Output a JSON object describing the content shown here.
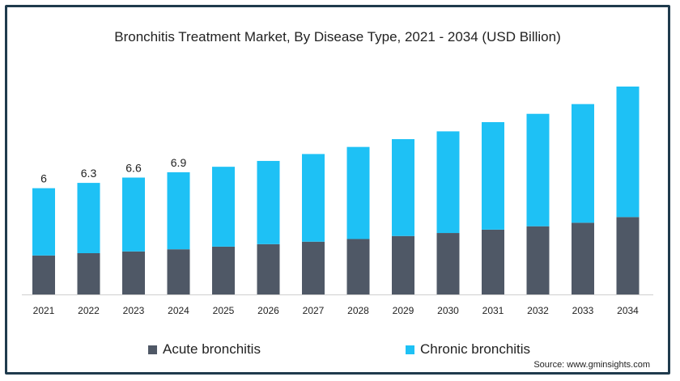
{
  "chart_data": {
    "type": "bar",
    "stacked": true,
    "title": "Bronchitis Treatment Market, By Disease Type, 2021 - 2034 (USD Billion)",
    "categories": [
      "2021",
      "2022",
      "2023",
      "2024",
      "2025",
      "2026",
      "2027",
      "2028",
      "2029",
      "2030",
      "2031",
      "2032",
      "2033",
      "2034"
    ],
    "series": [
      {
        "name": "Acute bronchitis",
        "color": "#4f5866",
        "values": [
          2.2,
          2.33,
          2.43,
          2.55,
          2.7,
          2.84,
          2.98,
          3.13,
          3.3,
          3.47,
          3.66,
          3.85,
          4.05,
          4.37
        ]
      },
      {
        "name": "Chronic bronchitis",
        "color": "#1ec1f5",
        "values": [
          3.8,
          3.97,
          4.17,
          4.35,
          4.51,
          4.7,
          4.95,
          5.2,
          5.47,
          5.74,
          6.07,
          6.35,
          6.7,
          7.37
        ]
      }
    ],
    "data_labels": [
      "6",
      "6.3",
      "6.6",
      "6.9",
      "",
      "",
      "",
      "",
      "",
      "",
      "",
      "",
      "",
      ""
    ],
    "ylim": [
      0,
      11.74
    ],
    "grid": false,
    "legend_position": "bottom"
  },
  "source": "Source: www.gminsights.com"
}
